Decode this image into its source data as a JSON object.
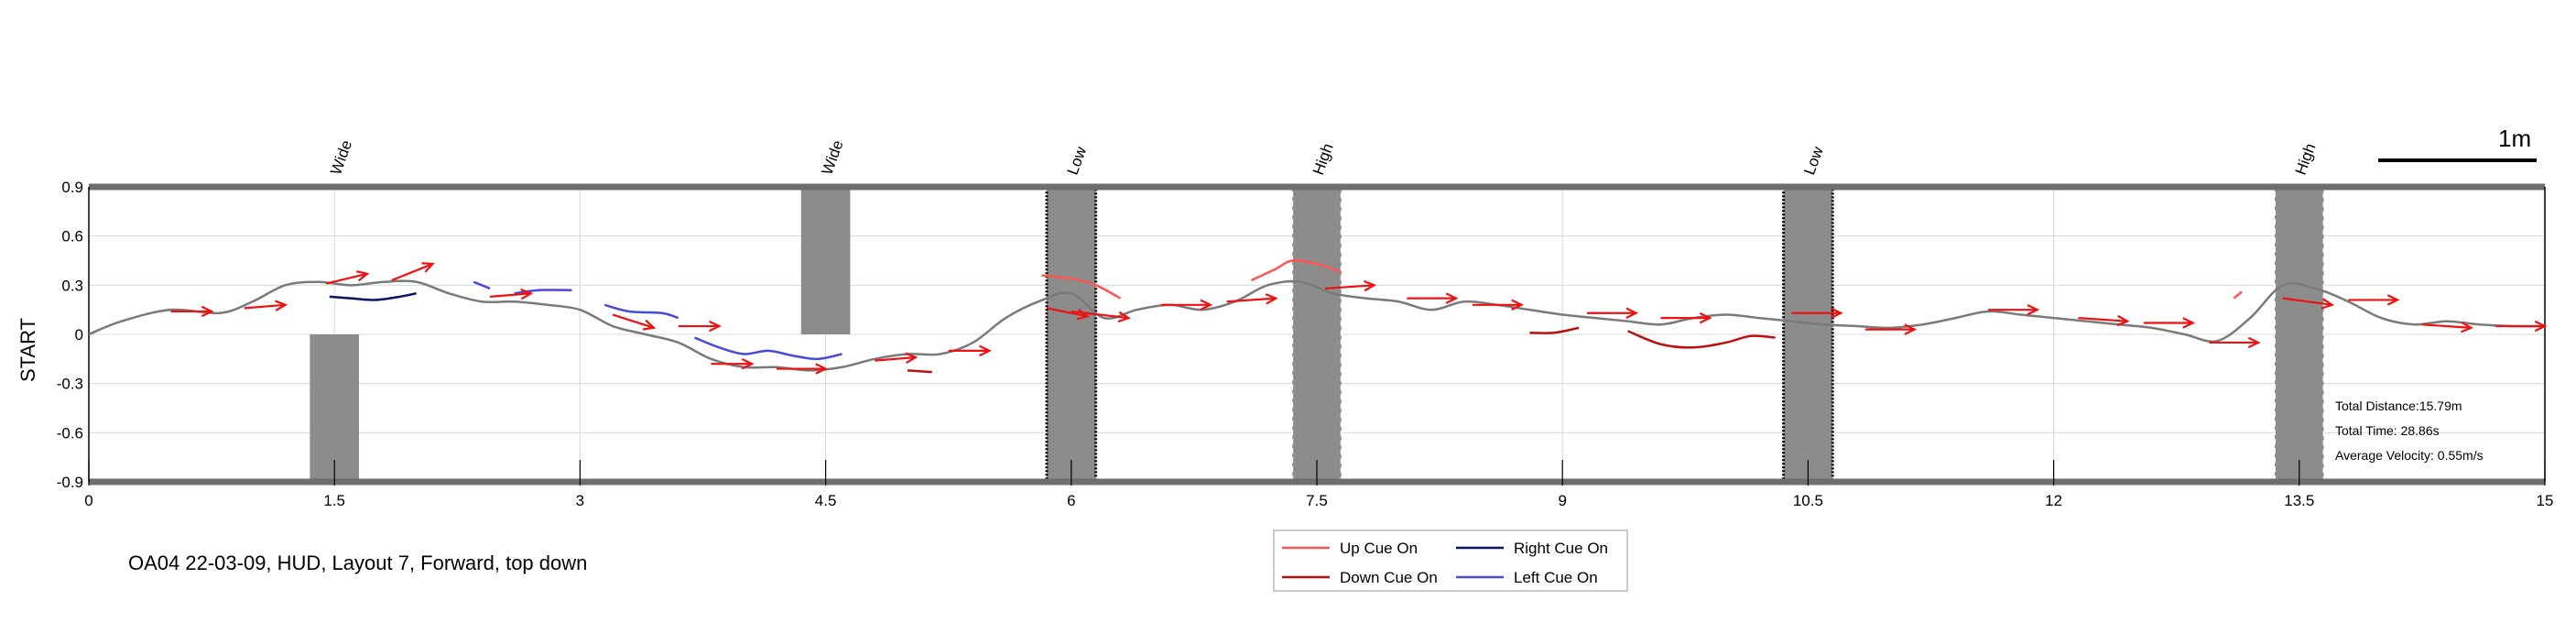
{
  "caption": "OA04 22-03-09, HUD, Layout 7, Forward, top down",
  "scale_bar_label": "1m",
  "stats": {
    "distance": "Total Distance:15.79m",
    "time": "Total Time: 28.86s",
    "velocity": "Average Velocity: 0.55m/s"
  },
  "colors": {
    "path": "#7a7a7a",
    "arrow": "#ee1111",
    "up_cue": "#ff5555",
    "down_cue": "#bb1111",
    "right_cue": "#0a1464",
    "left_cue": "#4a4ad8",
    "obstacle": "#8c8c8c"
  },
  "chart_data": {
    "type": "line",
    "ylabel": "START",
    "xlim": [
      0,
      15
    ],
    "ylim": [
      -0.9,
      0.9
    ],
    "xticks": [
      0,
      1.5,
      3,
      4.5,
      6,
      7.5,
      9,
      10.5,
      12,
      13.5,
      15
    ],
    "xtick_labels": [
      "0",
      "1.5",
      "3",
      "4.5",
      "6",
      "7.5",
      "9",
      "10.5",
      "12",
      "13.5",
      "15"
    ],
    "yticks": [
      0.9,
      0.6,
      0.3,
      0,
      -0.3,
      -0.6,
      -0.9
    ],
    "ytick_labels": [
      "0.9",
      "0.6",
      "0.3",
      "0",
      "-0.3",
      "-0.6",
      "-0.9"
    ],
    "grid": true,
    "legend_position": "bottom-center",
    "legend": [
      {
        "label": "Up Cue On",
        "color": "#ff5555"
      },
      {
        "label": "Right Cue On",
        "color": "#0a1464"
      },
      {
        "label": "Down Cue On",
        "color": "#bb1111"
      },
      {
        "label": "Left Cue On",
        "color": "#4a4ad8"
      }
    ],
    "obstacles": [
      {
        "label": "Wide",
        "x": [
          1.35,
          1.65
        ],
        "y": [
          -0.9,
          0
        ],
        "style": "plain"
      },
      {
        "label": "Wide",
        "x": [
          4.35,
          4.65
        ],
        "y": [
          0,
          0.9
        ],
        "style": "plain"
      },
      {
        "label": "Low",
        "x": [
          5.85,
          6.15
        ],
        "y": [
          -0.9,
          0.9
        ],
        "style": "dotted"
      },
      {
        "label": "High",
        "x": [
          7.35,
          7.65
        ],
        "y": [
          -0.9,
          0.9
        ],
        "style": "dashed"
      },
      {
        "label": "Low",
        "x": [
          10.35,
          10.65
        ],
        "y": [
          -0.9,
          0.9
        ],
        "style": "dotted"
      },
      {
        "label": "High",
        "x": [
          13.35,
          13.65
        ],
        "y": [
          -0.9,
          0.9
        ],
        "style": "dashed"
      }
    ],
    "path": {
      "x": [
        0,
        0.2,
        0.5,
        0.8,
        1.0,
        1.2,
        1.4,
        1.6,
        1.8,
        2.0,
        2.2,
        2.4,
        2.6,
        2.8,
        3.0,
        3.2,
        3.4,
        3.6,
        3.8,
        4.0,
        4.2,
        4.4,
        4.6,
        4.8,
        5.0,
        5.2,
        5.4,
        5.6,
        5.8,
        6.0,
        6.2,
        6.4,
        6.6,
        6.8,
        7.0,
        7.2,
        7.4,
        7.6,
        7.8,
        8.0,
        8.2,
        8.4,
        8.6,
        8.8,
        9.0,
        9.2,
        9.4,
        9.6,
        9.8,
        10.0,
        10.2,
        10.4,
        10.6,
        10.8,
        11.0,
        11.2,
        11.4,
        11.6,
        11.8,
        12.0,
        12.2,
        12.4,
        12.6,
        12.8,
        13.0,
        13.2,
        13.4,
        13.6,
        13.8,
        14.0,
        14.2,
        14.4,
        14.6,
        14.8,
        15.0
      ],
      "y": [
        0,
        0.08,
        0.15,
        0.13,
        0.2,
        0.3,
        0.32,
        0.3,
        0.32,
        0.32,
        0.25,
        0.2,
        0.2,
        0.18,
        0.15,
        0.05,
        0.0,
        -0.05,
        -0.15,
        -0.2,
        -0.2,
        -0.22,
        -0.2,
        -0.15,
        -0.12,
        -0.12,
        -0.05,
        0.1,
        0.2,
        0.25,
        0.1,
        0.15,
        0.18,
        0.15,
        0.2,
        0.3,
        0.32,
        0.25,
        0.22,
        0.2,
        0.15,
        0.2,
        0.18,
        0.15,
        0.12,
        0.1,
        0.08,
        0.06,
        0.1,
        0.12,
        0.1,
        0.08,
        0.06,
        0.05,
        0.04,
        0.06,
        0.1,
        0.14,
        0.12,
        0.1,
        0.08,
        0.06,
        0.04,
        0.0,
        -0.04,
        0.1,
        0.3,
        0.28,
        0.2,
        0.1,
        0.06,
        0.08,
        0.06,
        0.05,
        0.05
      ]
    },
    "arrows": [
      {
        "x": 0.5,
        "y": 0.14,
        "dx": 0.25,
        "dy": 0.0
      },
      {
        "x": 0.95,
        "y": 0.16,
        "dx": 0.25,
        "dy": 0.02
      },
      {
        "x": 1.45,
        "y": 0.31,
        "dx": 0.25,
        "dy": 0.06
      },
      {
        "x": 1.85,
        "y": 0.33,
        "dx": 0.25,
        "dy": 0.1
      },
      {
        "x": 2.45,
        "y": 0.23,
        "dx": 0.25,
        "dy": 0.02
      },
      {
        "x": 3.2,
        "y": 0.12,
        "dx": 0.25,
        "dy": -0.08
      },
      {
        "x": 3.6,
        "y": 0.05,
        "dx": 0.25,
        "dy": 0.0
      },
      {
        "x": 3.8,
        "y": -0.18,
        "dx": 0.25,
        "dy": 0.0
      },
      {
        "x": 4.2,
        "y": -0.21,
        "dx": 0.3,
        "dy": 0.0
      },
      {
        "x": 4.8,
        "y": -0.16,
        "dx": 0.25,
        "dy": 0.02
      },
      {
        "x": 5.25,
        "y": -0.1,
        "dx": 0.25,
        "dy": 0.0
      },
      {
        "x": 5.85,
        "y": 0.16,
        "dx": 0.25,
        "dy": -0.05
      },
      {
        "x": 6.0,
        "y": 0.14,
        "dx": 0.35,
        "dy": -0.04
      },
      {
        "x": 6.55,
        "y": 0.18,
        "dx": 0.3,
        "dy": 0.0
      },
      {
        "x": 6.95,
        "y": 0.2,
        "dx": 0.3,
        "dy": 0.02
      },
      {
        "x": 7.55,
        "y": 0.28,
        "dx": 0.3,
        "dy": 0.02
      },
      {
        "x": 8.05,
        "y": 0.22,
        "dx": 0.3,
        "dy": 0.0
      },
      {
        "x": 8.45,
        "y": 0.18,
        "dx": 0.3,
        "dy": 0.0
      },
      {
        "x": 9.15,
        "y": 0.13,
        "dx": 0.3,
        "dy": 0.0
      },
      {
        "x": 9.6,
        "y": 0.1,
        "dx": 0.3,
        "dy": 0.0
      },
      {
        "x": 10.4,
        "y": 0.13,
        "dx": 0.3,
        "dy": 0.0
      },
      {
        "x": 10.85,
        "y": 0.03,
        "dx": 0.3,
        "dy": 0.0
      },
      {
        "x": 11.6,
        "y": 0.15,
        "dx": 0.3,
        "dy": 0.0
      },
      {
        "x": 12.15,
        "y": 0.1,
        "dx": 0.3,
        "dy": -0.02
      },
      {
        "x": 12.55,
        "y": 0.07,
        "dx": 0.3,
        "dy": 0.0
      },
      {
        "x": 12.95,
        "y": -0.05,
        "dx": 0.3,
        "dy": 0.0
      },
      {
        "x": 13.4,
        "y": 0.22,
        "dx": 0.3,
        "dy": -0.04
      },
      {
        "x": 13.8,
        "y": 0.21,
        "dx": 0.3,
        "dy": 0.0
      },
      {
        "x": 14.25,
        "y": 0.06,
        "dx": 0.3,
        "dy": -0.02
      },
      {
        "x": 14.7,
        "y": 0.05,
        "dx": 0.3,
        "dy": 0.0
      }
    ],
    "cue_segments": [
      {
        "cue": "right",
        "x": [
          1.47,
          1.6,
          1.75,
          1.9,
          2.0
        ],
        "y": [
          0.23,
          0.22,
          0.21,
          0.23,
          0.25
        ]
      },
      {
        "cue": "left",
        "x": [
          2.35,
          2.45
        ],
        "y": [
          0.32,
          0.28
        ]
      },
      {
        "cue": "left",
        "x": [
          2.6,
          2.75,
          2.95
        ],
        "y": [
          0.25,
          0.27,
          0.27
        ]
      },
      {
        "cue": "left",
        "x": [
          3.15,
          3.3,
          3.5,
          3.6
        ],
        "y": [
          0.18,
          0.14,
          0.13,
          0.1
        ]
      },
      {
        "cue": "left",
        "x": [
          3.7,
          3.85,
          4.0,
          4.15,
          4.3,
          4.45,
          4.6
        ],
        "y": [
          -0.02,
          -0.08,
          -0.12,
          -0.1,
          -0.13,
          -0.15,
          -0.12
        ]
      },
      {
        "cue": "down",
        "x": [
          5.0,
          5.15
        ],
        "y": [
          -0.22,
          -0.23
        ]
      },
      {
        "cue": "up",
        "x": [
          5.82,
          6.0,
          6.15,
          6.3
        ],
        "y": [
          0.36,
          0.34,
          0.3,
          0.22
        ]
      },
      {
        "cue": "up",
        "x": [
          7.1,
          7.25,
          7.35,
          7.5,
          7.65
        ],
        "y": [
          0.33,
          0.4,
          0.45,
          0.43,
          0.38
        ]
      },
      {
        "cue": "down",
        "x": [
          8.8,
          8.95,
          9.1
        ],
        "y": [
          0.01,
          0.01,
          0.04
        ]
      },
      {
        "cue": "down",
        "x": [
          9.4,
          9.6,
          9.8,
          10.0,
          10.15,
          10.3
        ],
        "y": [
          0.02,
          -0.06,
          -0.08,
          -0.05,
          -0.01,
          -0.02
        ]
      },
      {
        "cue": "up",
        "x": [
          13.1,
          13.15
        ],
        "y": [
          0.22,
          0.26
        ]
      }
    ]
  }
}
